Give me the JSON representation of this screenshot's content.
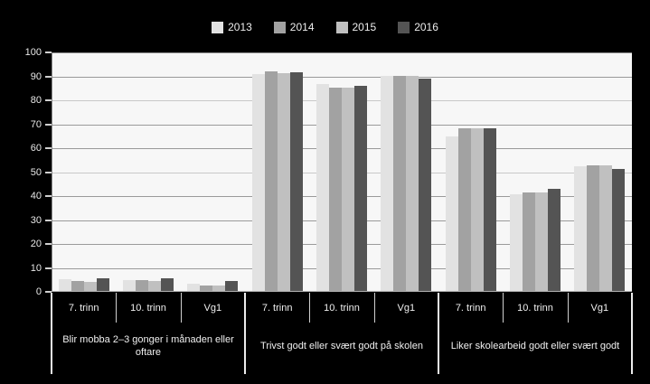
{
  "chart_data": {
    "type": "bar",
    "title": "",
    "legend_position": "top",
    "legend_entries": [
      "2013",
      "2014",
      "2015",
      "2016"
    ],
    "series_colors": [
      "#e2e2e2",
      "#a2a2a2",
      "#c0c0c0",
      "#545454"
    ],
    "ylim": [
      0,
      100
    ],
    "ytick_step": 10,
    "ytick_labels": [
      "0",
      "10",
      "20",
      "30",
      "40",
      "50",
      "60",
      "70",
      "80",
      "90",
      "100"
    ],
    "grid": true,
    "groups": [
      {
        "label": "Blir mobba 2–3 gonger i månaden eller oftare",
        "categories": [
          "7. trinn",
          "10. trinn",
          "Vg1"
        ],
        "series": [
          {
            "name": "2013",
            "values": [
              4.8,
              4.5,
              3.1
            ]
          },
          {
            "name": "2014",
            "values": [
              4.2,
              4.6,
              2.4
            ]
          },
          {
            "name": "2015",
            "values": [
              3.9,
              4.2,
              2.4
            ]
          },
          {
            "name": "2016",
            "values": [
              5.3,
              5.3,
              4.2
            ]
          }
        ]
      },
      {
        "label": "Trivst godt eller svært godt på skolen",
        "categories": [
          "7. trinn",
          "10. trinn",
          "Vg1"
        ],
        "series": [
          {
            "name": "2013",
            "values": [
              90.5,
              86.3,
              89.8
            ]
          },
          {
            "name": "2014",
            "values": [
              91.7,
              84.8,
              89.8
            ]
          },
          {
            "name": "2015",
            "values": [
              91.0,
              84.8,
              89.8
            ]
          },
          {
            "name": "2016",
            "values": [
              91.3,
              85.5,
              88.6
            ]
          }
        ]
      },
      {
        "label": "Liker skolearbeid godt eller svært godt",
        "categories": [
          "7. trinn",
          "10. trinn",
          "Vg1"
        ],
        "series": [
          {
            "name": "2013",
            "values": [
              64.5,
              40.5,
              52.0
            ]
          },
          {
            "name": "2014",
            "values": [
              68.0,
              41.0,
              52.5
            ]
          },
          {
            "name": "2015",
            "values": [
              68.0,
              41.0,
              52.5
            ]
          },
          {
            "name": "2016",
            "values": [
              68.0,
              42.5,
              51.0
            ]
          }
        ]
      }
    ]
  },
  "colors": {
    "background": "#000000",
    "plot_background": "#f7f7f7",
    "gridline": "#9a9a9a",
    "gridline_light": "#c8c8c8",
    "axis_line": "#8a8a8a",
    "text": "#f0f0f0",
    "divider_minor": "#cfcfcf",
    "divider_major": "#ececec"
  }
}
